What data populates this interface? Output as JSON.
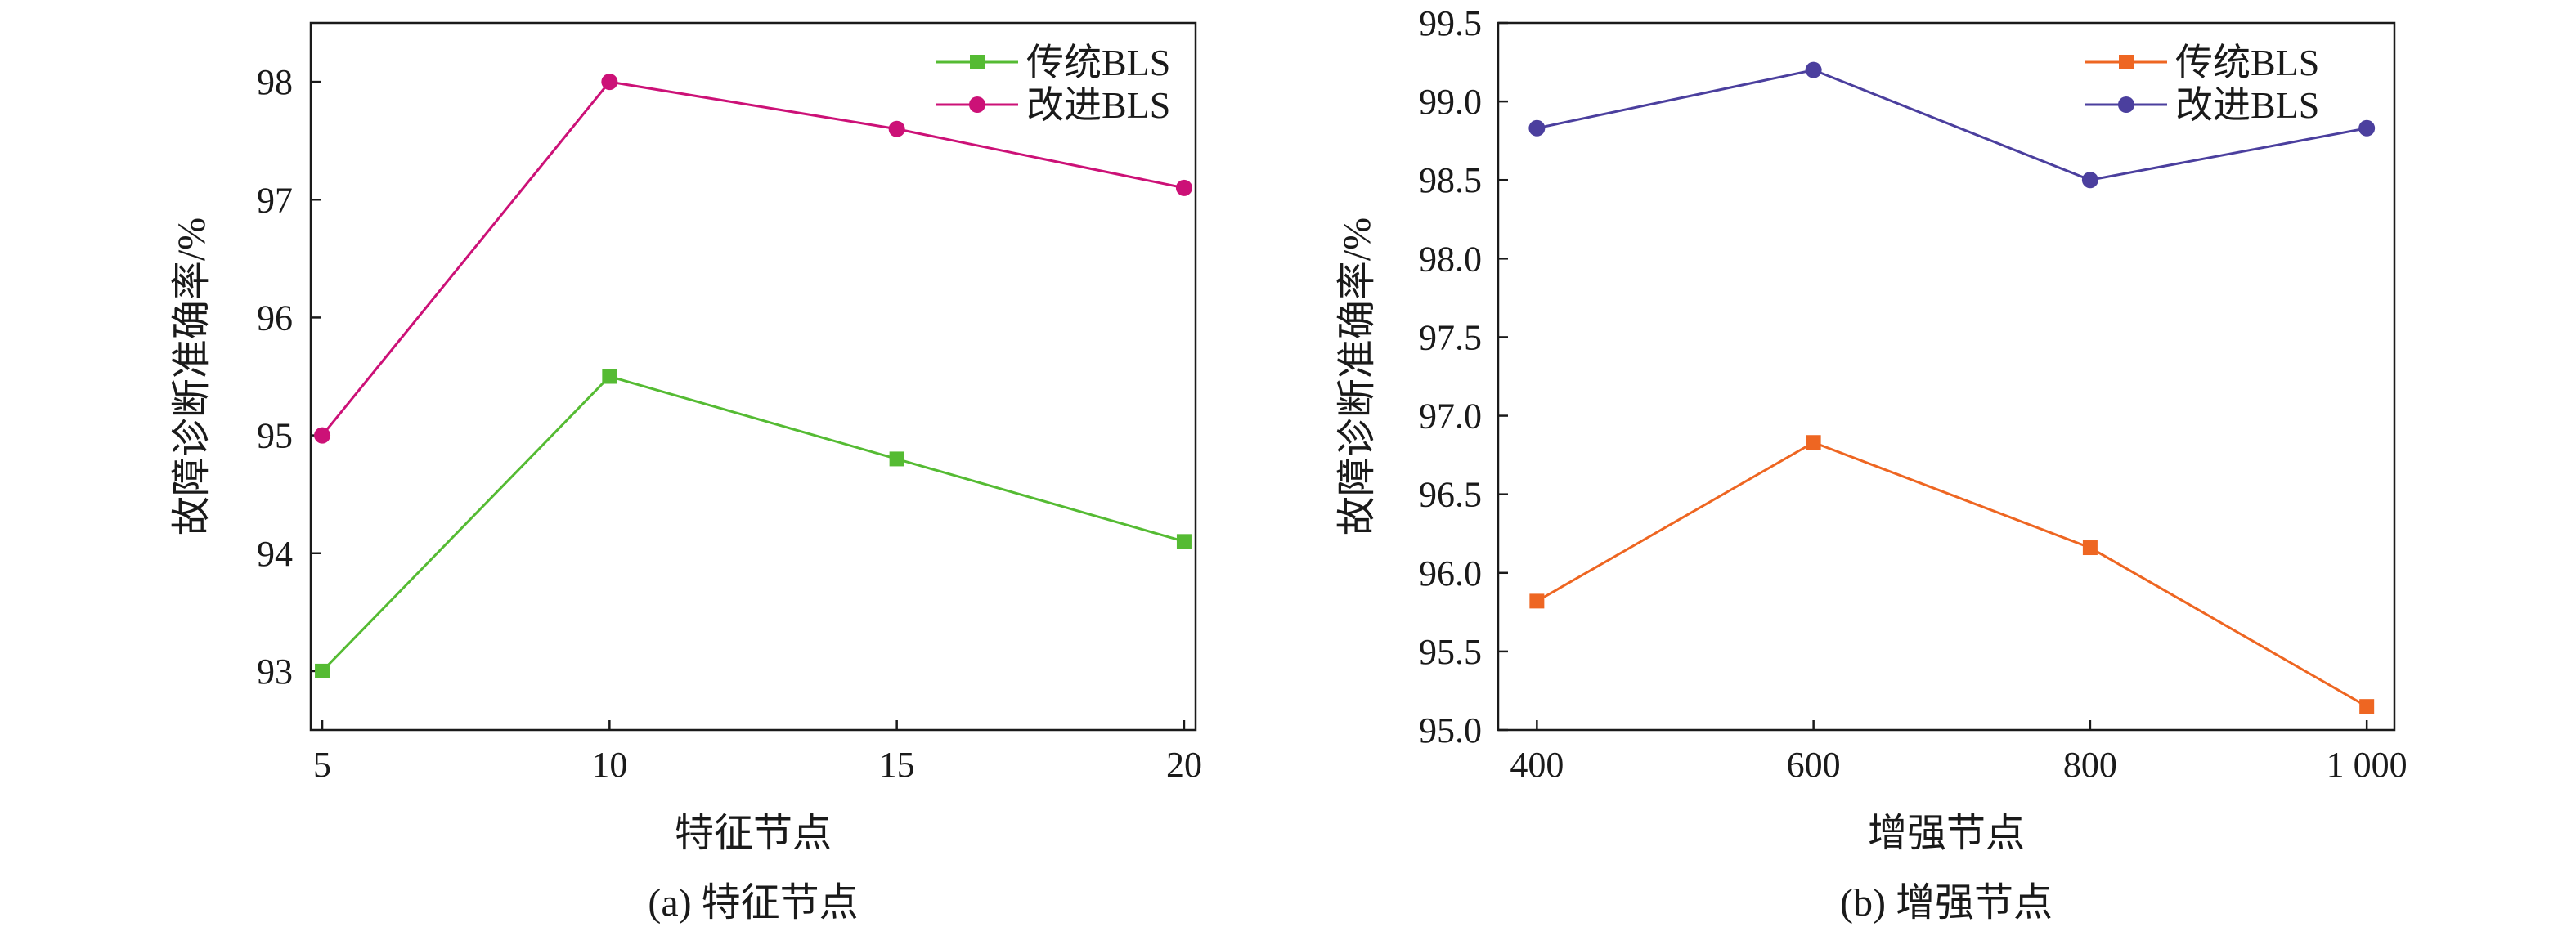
{
  "chart_data": [
    {
      "type": "line",
      "caption": "(a) 特征节点",
      "xlabel": "特征节点",
      "ylabel": "故障诊断准确率/%",
      "x": [
        5,
        10,
        15,
        20
      ],
      "x_tick_labels": [
        "5",
        "10",
        "15",
        "20"
      ],
      "xlim": [
        4.8,
        20.2
      ],
      "ylim": [
        92.5,
        98.5
      ],
      "y_ticks": [
        93,
        94,
        95,
        96,
        97,
        98
      ],
      "y_tick_labels": [
        "93",
        "94",
        "95",
        "96",
        "97",
        "98"
      ],
      "grid": false,
      "legend_position": "top-right",
      "series": [
        {
          "name": "传统BLS",
          "color": "#55bb33",
          "marker": "square",
          "values": [
            93.0,
            95.5,
            94.8,
            94.1
          ]
        },
        {
          "name": "改进BLS",
          "color": "#cc1177",
          "marker": "circle",
          "values": [
            95.0,
            98.0,
            97.6,
            97.1
          ]
        }
      ]
    },
    {
      "type": "line",
      "caption": "(b) 增强节点",
      "xlabel": "增强节点",
      "ylabel": "故障诊断准确率/%",
      "x": [
        400,
        600,
        800,
        1000
      ],
      "x_tick_labels": [
        "400",
        "600",
        "800",
        "1 000"
      ],
      "xlim": [
        372,
        1020
      ],
      "ylim": [
        95.0,
        99.5
      ],
      "y_ticks": [
        95.0,
        95.5,
        96.0,
        96.5,
        97.0,
        97.5,
        98.0,
        98.5,
        99.0,
        99.5
      ],
      "y_tick_labels": [
        "95.0",
        "95.5",
        "96.0",
        "96.5",
        "97.0",
        "97.5",
        "98.0",
        "98.5",
        "99.0",
        "99.5"
      ],
      "grid": false,
      "legend_position": "top-right",
      "series": [
        {
          "name": "传统BLS",
          "color": "#ee6622",
          "marker": "square",
          "values": [
            95.82,
            96.83,
            96.16,
            95.15
          ]
        },
        {
          "name": "改进BLS",
          "color": "#4b3f9e",
          "marker": "circle",
          "values": [
            98.83,
            99.2,
            98.5,
            98.83
          ]
        }
      ]
    }
  ]
}
